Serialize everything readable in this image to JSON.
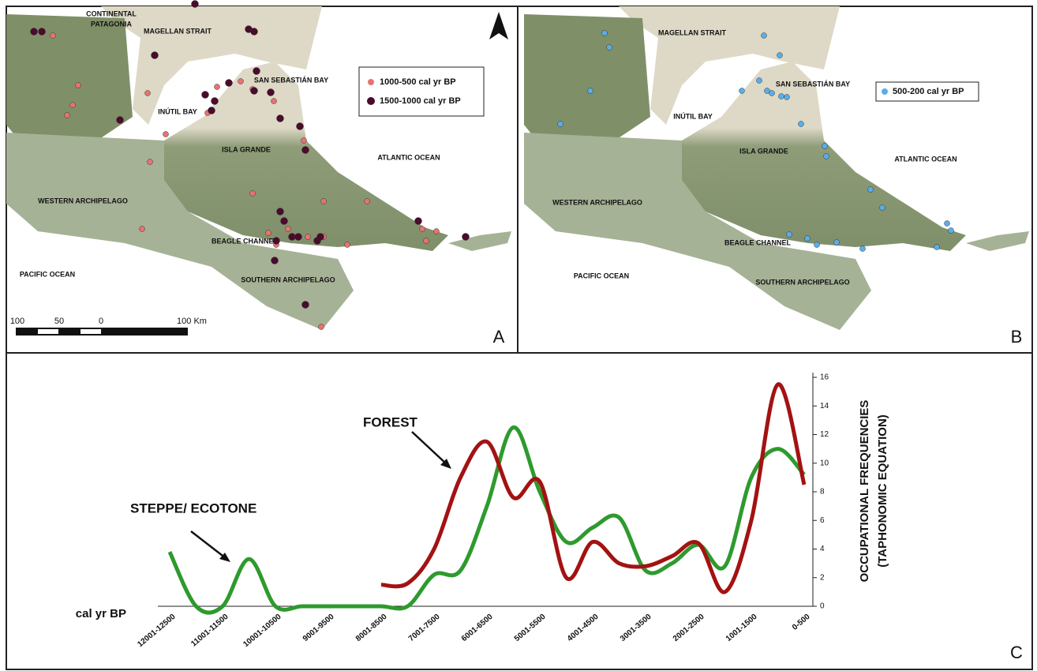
{
  "maps": [
    {
      "panel_label": "A",
      "labels": [
        "CONTINENTAL",
        "PATAGONIA",
        "MAGELLAN STRAIT",
        "SAN SEBASTIÁN BAY",
        "INÚTIL BAY",
        "ISLA GRANDE",
        "ATLANTIC OCEAN",
        "WESTERN ARCHIPELAGO",
        "BEAGLE CHANNEL",
        "PACIFIC OCEAN",
        "SOUTHERN ARCHIPELAGO"
      ],
      "legend": [
        {
          "label": "1000-500 cal yr BP",
          "color": "#e87272"
        },
        {
          "label": "1500-1000 cal yr BP",
          "color": "#4a0b2c"
        }
      ],
      "scale": [
        "100",
        "50",
        "0",
        "100 Km"
      ]
    },
    {
      "panel_label": "B",
      "labels": [
        "MAGELLAN STRAIT",
        "SAN SEBASTIÁN BAY",
        "INÚTIL BAY",
        "ISLA GRANDE",
        "ATLANTIC OCEAN",
        "WESTERN ARCHIPELAGO",
        "BEAGLE CHANNEL",
        "PACIFIC OCEAN",
        "SOUTHERN ARCHIPELAGO"
      ],
      "legend": [
        {
          "label": "500-200 cal yr BP",
          "color": "#5aaee8"
        }
      ]
    }
  ],
  "chart_data": {
    "type": "line",
    "panel_label": "C",
    "x_axis_label": "cal yr BP",
    "y_axis_label": [
      "OCCUPATIONAL FREQUENCIES",
      "(TAPHONOMIC EQUATION)"
    ],
    "annotations": [
      "FOREST",
      "STEPPE/ ECOTONE"
    ],
    "categories": [
      "12001-12500",
      null,
      "11001-11500",
      null,
      "10001-10500",
      null,
      "9001-9500",
      null,
      "8001-8500",
      null,
      "7001-7500",
      null,
      "6001-6500",
      null,
      "5001-5500",
      null,
      "4001-4500",
      null,
      "3001-3500",
      null,
      "2001-2500",
      null,
      "1001-1500",
      null,
      "0-500"
    ],
    "series": [
      {
        "color": "#2e9a2e",
        "values": [
          3.8,
          0,
          0,
          3.3,
          0,
          0,
          0,
          0,
          0,
          0,
          2.2,
          2.5,
          7,
          12.5,
          8,
          4.5,
          5.5,
          6.2,
          2.5,
          3,
          4.3,
          2.8,
          9,
          11,
          9.2
        ]
      },
      {
        "color": "#a31212",
        "values": [
          null,
          null,
          null,
          null,
          null,
          null,
          null,
          null,
          1.5,
          1.6,
          4,
          9,
          11.5,
          7.6,
          8.7,
          2,
          4.5,
          3,
          2.8,
          3.5,
          4.4,
          1,
          6,
          15.5,
          8.5
        ]
      }
    ],
    "ylim": [
      0,
      16
    ],
    "yticks": [
      0,
      2,
      4,
      6,
      8,
      10,
      12,
      14,
      16
    ]
  }
}
